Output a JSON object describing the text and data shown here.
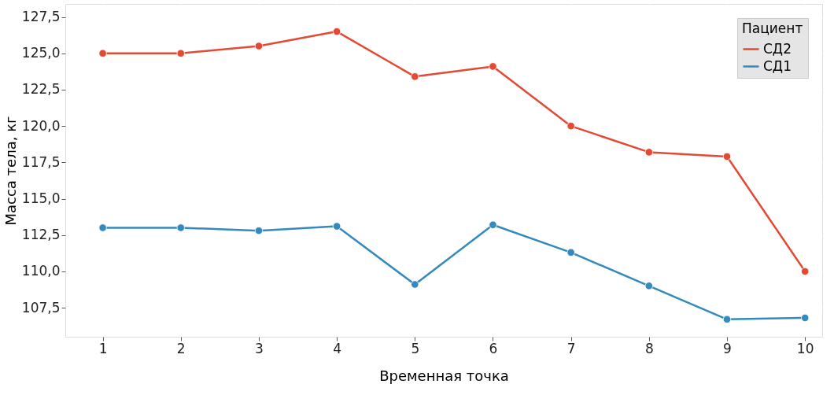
{
  "chart_data": {
    "type": "line",
    "xlabel": "Временная точка",
    "ylabel": "Масса тела, кг",
    "legend_title": "Пациент",
    "legend": "top right",
    "grid": true,
    "marker": "circle",
    "line_style": "solid",
    "x": [
      1,
      2,
      3,
      4,
      5,
      6,
      7,
      8,
      9,
      10
    ],
    "xlim": [
      0.52,
      10.22
    ],
    "xticks": [
      1,
      2,
      3,
      4,
      5,
      6,
      7,
      8,
      9,
      10
    ],
    "ylim": [
      105.5,
      128.4
    ],
    "yticks": [
      {
        "value": 107.5,
        "label": "107,5"
      },
      {
        "value": 110,
        "label": "110,0"
      },
      {
        "value": 112.5,
        "label": "112,5"
      },
      {
        "value": 115,
        "label": "115,0"
      },
      {
        "value": 117.5,
        "label": "117,5"
      },
      {
        "value": 120,
        "label": "120,0"
      },
      {
        "value": 122.5,
        "label": "122,5"
      },
      {
        "value": 125,
        "label": "125,0"
      },
      {
        "value": 127.5,
        "label": "127,5"
      }
    ],
    "series": [
      {
        "name": "СД2",
        "color": "#e24a33",
        "values": [
          125.0,
          125.0,
          125.5,
          126.5,
          123.4,
          124.1,
          120.0,
          118.2,
          117.9,
          110.0
        ]
      },
      {
        "name": "СД1",
        "color": "#348abd",
        "values": [
          113.0,
          113.0,
          112.8,
          113.1,
          109.1,
          113.2,
          111.3,
          109.0,
          106.7,
          106.8
        ]
      }
    ]
  }
}
